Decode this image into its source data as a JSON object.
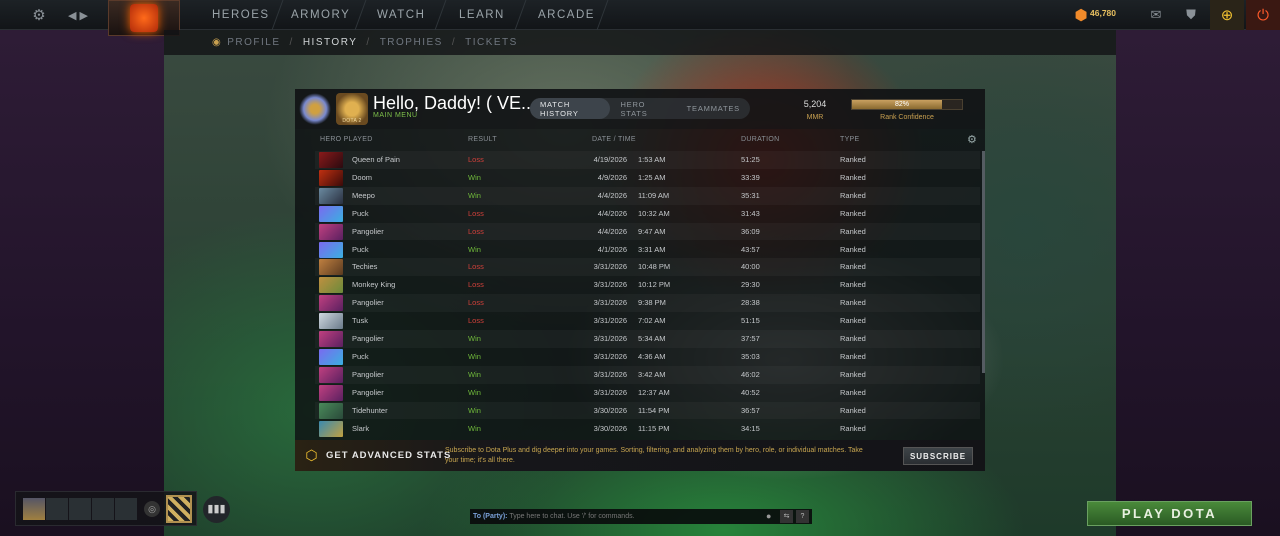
{
  "topbar": {
    "nav": [
      "HEROES",
      "ARMORY",
      "WATCH",
      "LEARN",
      "ARCADE"
    ],
    "currency": "46,780"
  },
  "subnav": {
    "items": [
      "PROFILE",
      "HISTORY",
      "TROPHIES",
      "TICKETS"
    ],
    "active": "HISTORY"
  },
  "profile": {
    "greeting": "Hello, Daddy! ( VE...",
    "main_menu": "MAIN MENU",
    "medal_text": "DOTA 2",
    "tabs": [
      "MATCH HISTORY",
      "HERO STATS",
      "TEAMMATES"
    ],
    "active_tab": "MATCH HISTORY",
    "mmr": "5,204",
    "mmr_label": "MMR",
    "rank_confidence_pct": 82,
    "rank_confidence_text": "82%",
    "rank_confidence_label": "Rank Confidence"
  },
  "table": {
    "columns": [
      "HERO PLAYED",
      "RESULT",
      "DATE / TIME",
      "DURATION",
      "TYPE"
    ],
    "rows": [
      {
        "hero": "Queen of Pain",
        "result": "Loss",
        "date": "4/19/2026",
        "time": "1:53 AM",
        "duration": "51:25",
        "type": "Ranked"
      },
      {
        "hero": "Doom",
        "result": "Win",
        "date": "4/9/2026",
        "time": "1:25 AM",
        "duration": "33:39",
        "type": "Ranked"
      },
      {
        "hero": "Meepo",
        "result": "Win",
        "date": "4/4/2026",
        "time": "11:09 AM",
        "duration": "35:31",
        "type": "Ranked"
      },
      {
        "hero": "Puck",
        "result": "Loss",
        "date": "4/4/2026",
        "time": "10:32 AM",
        "duration": "31:43",
        "type": "Ranked"
      },
      {
        "hero": "Pangolier",
        "result": "Loss",
        "date": "4/4/2026",
        "time": "9:47 AM",
        "duration": "36:09",
        "type": "Ranked"
      },
      {
        "hero": "Puck",
        "result": "Win",
        "date": "4/1/2026",
        "time": "3:31 AM",
        "duration": "43:57",
        "type": "Ranked"
      },
      {
        "hero": "Techies",
        "result": "Loss",
        "date": "3/31/2026",
        "time": "10:48 PM",
        "duration": "40:00",
        "type": "Ranked"
      },
      {
        "hero": "Monkey King",
        "result": "Loss",
        "date": "3/31/2026",
        "time": "10:12 PM",
        "duration": "29:30",
        "type": "Ranked"
      },
      {
        "hero": "Pangolier",
        "result": "Loss",
        "date": "3/31/2026",
        "time": "9:38 PM",
        "duration": "28:38",
        "type": "Ranked"
      },
      {
        "hero": "Tusk",
        "result": "Loss",
        "date": "3/31/2026",
        "time": "7:02 AM",
        "duration": "51:15",
        "type": "Ranked"
      },
      {
        "hero": "Pangolier",
        "result": "Win",
        "date": "3/31/2026",
        "time": "5:34 AM",
        "duration": "37:57",
        "type": "Ranked"
      },
      {
        "hero": "Puck",
        "result": "Win",
        "date": "3/31/2026",
        "time": "4:36 AM",
        "duration": "35:03",
        "type": "Ranked"
      },
      {
        "hero": "Pangolier",
        "result": "Win",
        "date": "3/31/2026",
        "time": "3:42 AM",
        "duration": "46:02",
        "type": "Ranked"
      },
      {
        "hero": "Pangolier",
        "result": "Win",
        "date": "3/31/2026",
        "time": "12:37 AM",
        "duration": "40:52",
        "type": "Ranked"
      },
      {
        "hero": "Tidehunter",
        "result": "Win",
        "date": "3/30/2026",
        "time": "11:54 PM",
        "duration": "36:57",
        "type": "Ranked"
      },
      {
        "hero": "Slark",
        "result": "Win",
        "date": "3/30/2026",
        "time": "11:15 PM",
        "duration": "34:15",
        "type": "Ranked"
      }
    ]
  },
  "advanced": {
    "title": "GET ADVANCED STATS",
    "description": "Subscribe to Dota Plus and dig deeper into your games. Sorting, filtering, and analyzing them by hero, role, or individual matches. Take your time; it's all there.",
    "button": "SUBSCRIBE"
  },
  "chat": {
    "channel": "To (Party):",
    "placeholder": "Type here to chat. Use '/' for commands.",
    "help": "?"
  },
  "play_button": "PLAY DOTA",
  "colors": {
    "win": "#6fb83a",
    "loss": "#d0403a",
    "accent_gold": "#c8a050",
    "play_green": "#3a7a30"
  }
}
